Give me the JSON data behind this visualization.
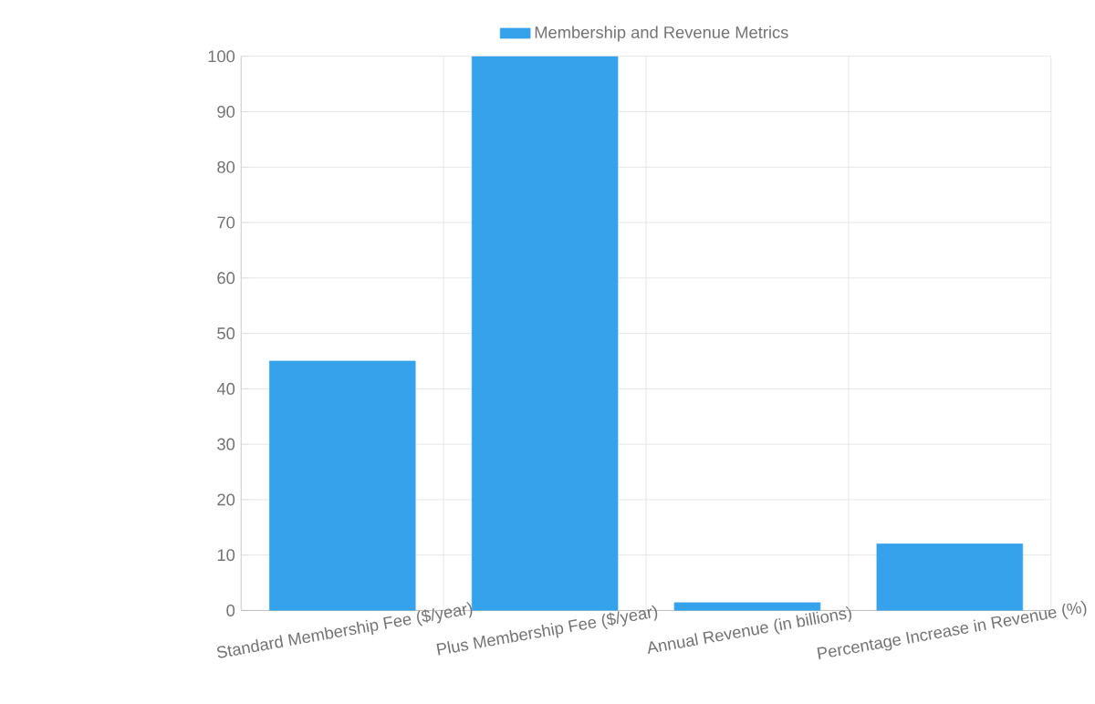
{
  "chart_data": {
    "type": "bar",
    "categories": [
      "Standard Membership Fee ($/year)",
      "Plus Membership Fee ($/year)",
      "Annual Revenue (in billions)",
      "Percentage Increase in Revenue (%)"
    ],
    "series": [
      {
        "name": "Membership and Revenue Metrics",
        "color": "#36a2eb",
        "values": [
          45,
          100,
          1.4,
          12
        ]
      }
    ],
    "ylim": [
      0,
      100
    ],
    "yticks": [
      0,
      10,
      20,
      30,
      40,
      50,
      60,
      70,
      80,
      90,
      100
    ],
    "grid": true,
    "legend": "top"
  }
}
